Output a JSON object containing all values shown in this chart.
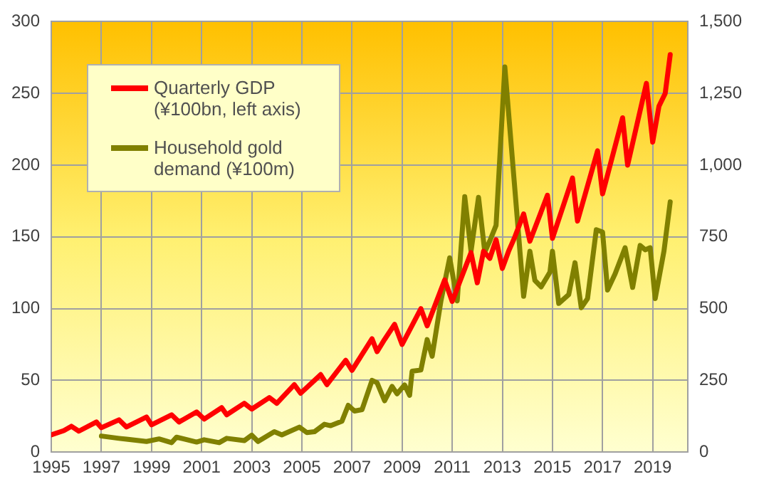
{
  "chart_data": {
    "type": "line",
    "xlim": [
      1995,
      2020.4
    ],
    "xticks": [
      1995,
      1997,
      1999,
      2001,
      2003,
      2005,
      2007,
      2009,
      2011,
      2013,
      2015,
      2017,
      2019
    ],
    "ylim": [
      0,
      300
    ],
    "yticks": [
      0,
      50,
      100,
      150,
      200,
      250,
      300
    ],
    "y2lim": [
      0,
      1500
    ],
    "y2ticks": [
      0,
      250,
      500,
      750,
      {
        "value": 1000,
        "label": "1,000"
      },
      {
        "value": 1250,
        "label": "1,250"
      },
      {
        "value": 1500,
        "label": "1,500"
      }
    ],
    "grid": true,
    "legend": "top left",
    "marker": "none",
    "line_style": "solid",
    "series": [
      {
        "name": "Quarterly GDP (¥100bn, left axis)",
        "color": "#ff0000",
        "x": [
          1995,
          1995.5,
          1995.8,
          1996.1,
          1996.8,
          1997,
          1997.7,
          1998,
          1998.8,
          1999,
          1999.8,
          2000.1,
          2000.8,
          2001.1,
          2001.8,
          2002,
          2002.7,
          2003,
          2003.7,
          2004,
          2004.7,
          2004.95,
          2005.75,
          2006,
          2006.75,
          2007,
          2007.8,
          2008,
          2008.3,
          2008.7,
          2009,
          2009.75,
          2010,
          2010.7,
          2011,
          2011.75,
          2012,
          2012.25,
          2012.5,
          2012.75,
          2013,
          2013.25,
          2013.5,
          2013.85,
          2014.1,
          2014.8,
          2015,
          2015.8,
          2016,
          2016.8,
          2017,
          2017.8,
          2018,
          2018.75,
          2019,
          2019.25,
          2019.5,
          2019.7
        ],
        "values": [
          12,
          15,
          18,
          14.6,
          21,
          17,
          22.5,
          17.5,
          24.5,
          19,
          26,
          21,
          28,
          23,
          31,
          26,
          34,
          30,
          38,
          34,
          47,
          41,
          54,
          47,
          64,
          57,
          79,
          70,
          78.5,
          89,
          75,
          100,
          88,
          120,
          105,
          139,
          118,
          140,
          135,
          148,
          128,
          140,
          150,
          166,
          147,
          179,
          149,
          191,
          161,
          210,
          180,
          233,
          200,
          257,
          216,
          241,
          250,
          277
        ]
      },
      {
        "name": "Household gold demand (¥100m)",
        "color": "#808000",
        "axis": "y2",
        "x": [
          1997,
          1997.7,
          1998,
          1998.8,
          1999.3,
          1999.8,
          2000,
          2000.8,
          2001.1,
          2001.7,
          2002,
          2002.7,
          2003,
          2003.25,
          2003.9,
          2004.2,
          2004.9,
          2005.2,
          2005.5,
          2005.9,
          2006.15,
          2006.6,
          2006.85,
          2007.1,
          2007.4,
          2007.8,
          2008,
          2008.3,
          2008.6,
          2008.8,
          2009.1,
          2009.3,
          2009.4,
          2009.75,
          2010,
          2010.2,
          2010.55,
          2010.9,
          2011.2,
          2011.5,
          2011.75,
          2012.05,
          2012.3,
          2012.5,
          2012.75,
          2013.1,
          2013.85,
          2014.1,
          2014.3,
          2014.55,
          2014.9,
          2015,
          2015.25,
          2015.65,
          2015.9,
          2016.15,
          2016.4,
          2016.75,
          2017,
          2017.2,
          2017.5,
          2017.9,
          2018.2,
          2018.5,
          2018.7,
          2018.9,
          2019.1,
          2019.45,
          2019.7
        ],
        "values": [
          56,
          48,
          45,
          37,
          46,
          33,
          52,
          35,
          43,
          33,
          48,
          40,
          59,
          37,
          71,
          60,
          87,
          68,
          71,
          97,
          92,
          108,
          163,
          143,
          148,
          250,
          242,
          179,
          229,
          203,
          234,
          198,
          282,
          286,
          392,
          334,
          527,
          677,
          527,
          890,
          700,
          888,
          697,
          736,
          790,
          1342,
          543,
          700,
          598,
          576,
          627,
          700,
          518,
          549,
          660,
          503,
          535,
          775,
          767,
          565,
          621,
          712,
          574,
          720,
          705,
          712,
          535,
          700,
          872
        ]
      }
    ]
  }
}
